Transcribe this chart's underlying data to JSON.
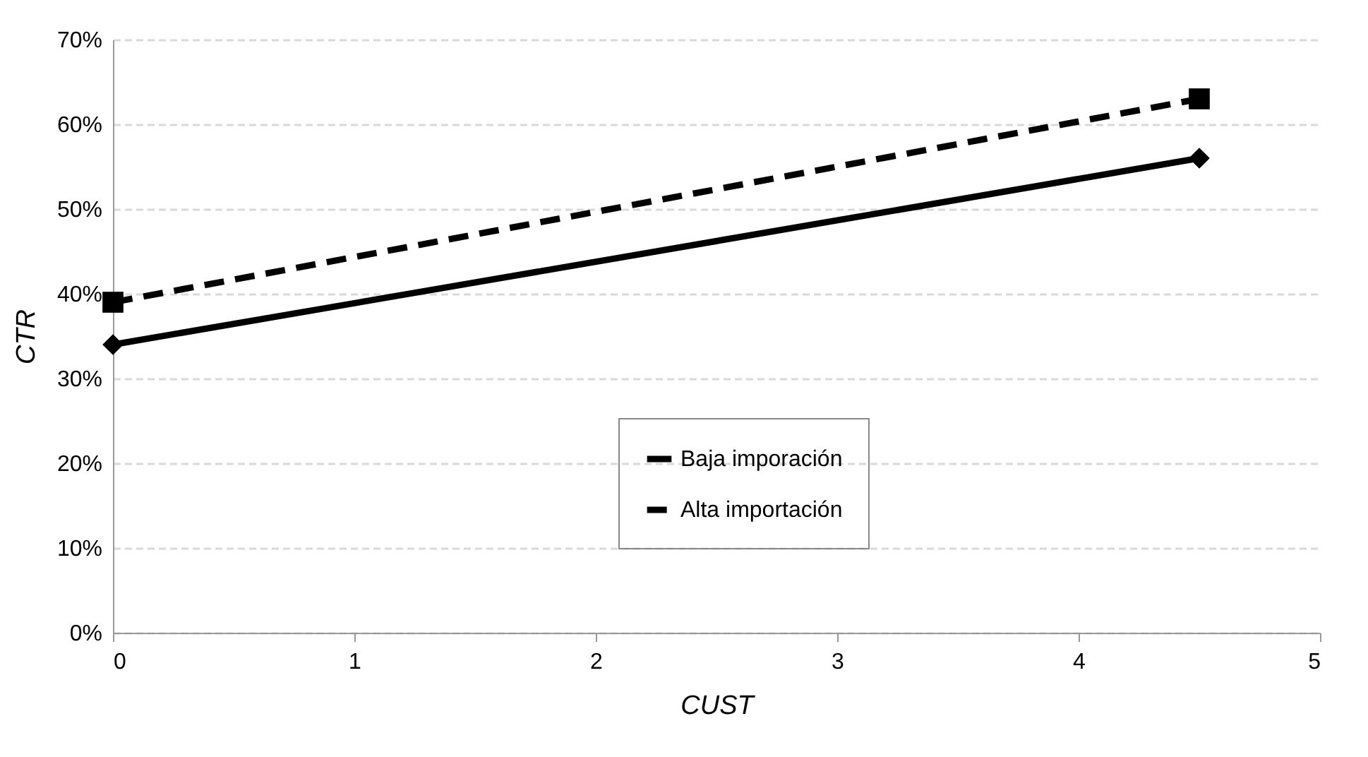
{
  "chart_data": {
    "type": "line",
    "xlabel": "CUST",
    "ylabel": "CTR",
    "x": [
      0,
      4.5
    ],
    "series": [
      {
        "name": "Baja imporación",
        "color": "#000000",
        "values": [
          0.34,
          0.56
        ],
        "marker": "diamond",
        "line_style": "solid"
      },
      {
        "name": "Alta importación",
        "color": "#000000",
        "values": [
          0.39,
          0.63
        ],
        "marker": "square",
        "line_style": "dashed"
      }
    ],
    "xlim": [
      0,
      5
    ],
    "xticks": [
      0,
      1,
      2,
      3,
      4,
      5
    ],
    "ylim": [
      0,
      0.7
    ],
    "yticks": [
      {
        "value": 0,
        "label": "0%"
      },
      {
        "value": 0.1,
        "label": "10%"
      },
      {
        "value": 0.2,
        "label": "20%"
      },
      {
        "value": 0.3,
        "label": "30%"
      },
      {
        "value": 0.4,
        "label": "40%"
      },
      {
        "value": 0.5,
        "label": "50%"
      },
      {
        "value": 0.6,
        "label": "60%"
      },
      {
        "value": 0.7,
        "label": "70%"
      }
    ],
    "grid": "y",
    "legend": "bottom right"
  }
}
